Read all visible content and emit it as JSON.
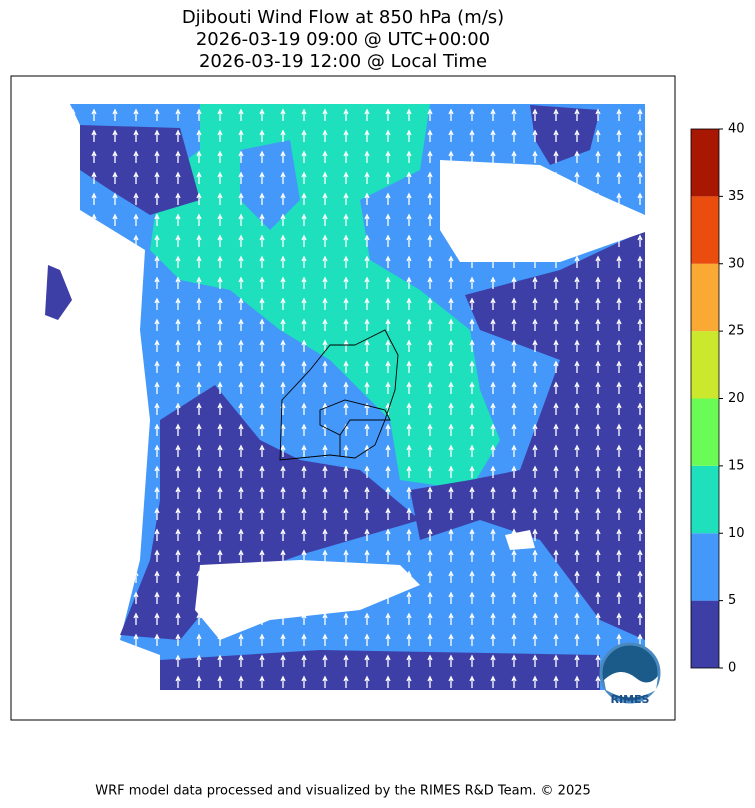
{
  "title": [
    "Djibouti Wind Flow at 850 hPa (m/s)",
    "2026-03-19 09:00 @ UTC+00:00",
    "2026-03-19 12:00 @ Local Time"
  ],
  "colorbar": {
    "lim": [
      0,
      40
    ],
    "ticks": [
      0,
      5,
      10,
      15,
      20,
      25,
      30,
      35,
      40
    ],
    "colors": [
      "#3e3fa6",
      "#4398fa",
      "#1ee0bc",
      "#6bfb56",
      "#cbe82c",
      "#fba935",
      "#ea4d0e",
      "#a81702"
    ]
  },
  "logo": "RIMES",
  "footer": "WRF model data processed and visualized by the RIMES R&D Team. © 2025"
}
